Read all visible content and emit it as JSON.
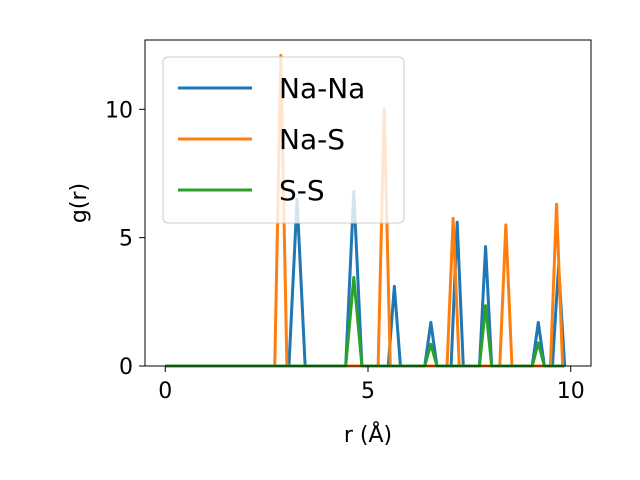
{
  "chart_data": {
    "type": "line",
    "title": "",
    "xlabel": "r (Å)",
    "ylabel": "g(r)",
    "xlim": [
      -0.5,
      10.5
    ],
    "ylim": [
      0,
      12.7
    ],
    "xticks": [
      0,
      5,
      10
    ],
    "yticks": [
      0,
      5,
      10
    ],
    "grid": false,
    "legend_position": "top-left",
    "series": [
      {
        "name": "Na-Na",
        "color": "#1f77b4",
        "x": [
          0,
          3.05,
          3.25,
          3.45,
          4.45,
          4.65,
          4.85,
          5.5,
          5.65,
          5.8,
          6.4,
          6.55,
          6.7,
          7.05,
          7.2,
          7.35,
          7.75,
          7.9,
          8.05,
          9.05,
          9.2,
          9.35,
          9.55,
          9.7,
          9.85
        ],
        "y": [
          0,
          0,
          6.5,
          0,
          0,
          6.8,
          0,
          0,
          3.1,
          0,
          0,
          1.7,
          0,
          0,
          5.6,
          0,
          0,
          4.65,
          0,
          0,
          1.7,
          0,
          0,
          3.9,
          0
        ]
      },
      {
        "name": "Na-S",
        "color": "#ff7f0e",
        "x": [
          0,
          2.7,
          2.85,
          3.0,
          5.25,
          5.4,
          5.55,
          6.95,
          7.1,
          7.25,
          8.25,
          8.4,
          8.55,
          9.5,
          9.65,
          9.8
        ],
        "y": [
          0,
          0,
          12.1,
          0,
          0,
          10.0,
          0,
          0,
          5.75,
          0,
          0,
          5.5,
          0,
          0,
          6.3,
          0
        ]
      },
      {
        "name": "S-S",
        "color": "#2ca02c",
        "x": [
          0,
          4.45,
          4.65,
          4.85,
          6.4,
          6.55,
          6.7,
          7.75,
          7.9,
          8.05,
          9.05,
          9.2,
          9.35,
          9.85
        ],
        "y": [
          0,
          0,
          3.45,
          0,
          0,
          0.85,
          0,
          0,
          2.35,
          0,
          0,
          0.9,
          0,
          0
        ]
      }
    ]
  }
}
